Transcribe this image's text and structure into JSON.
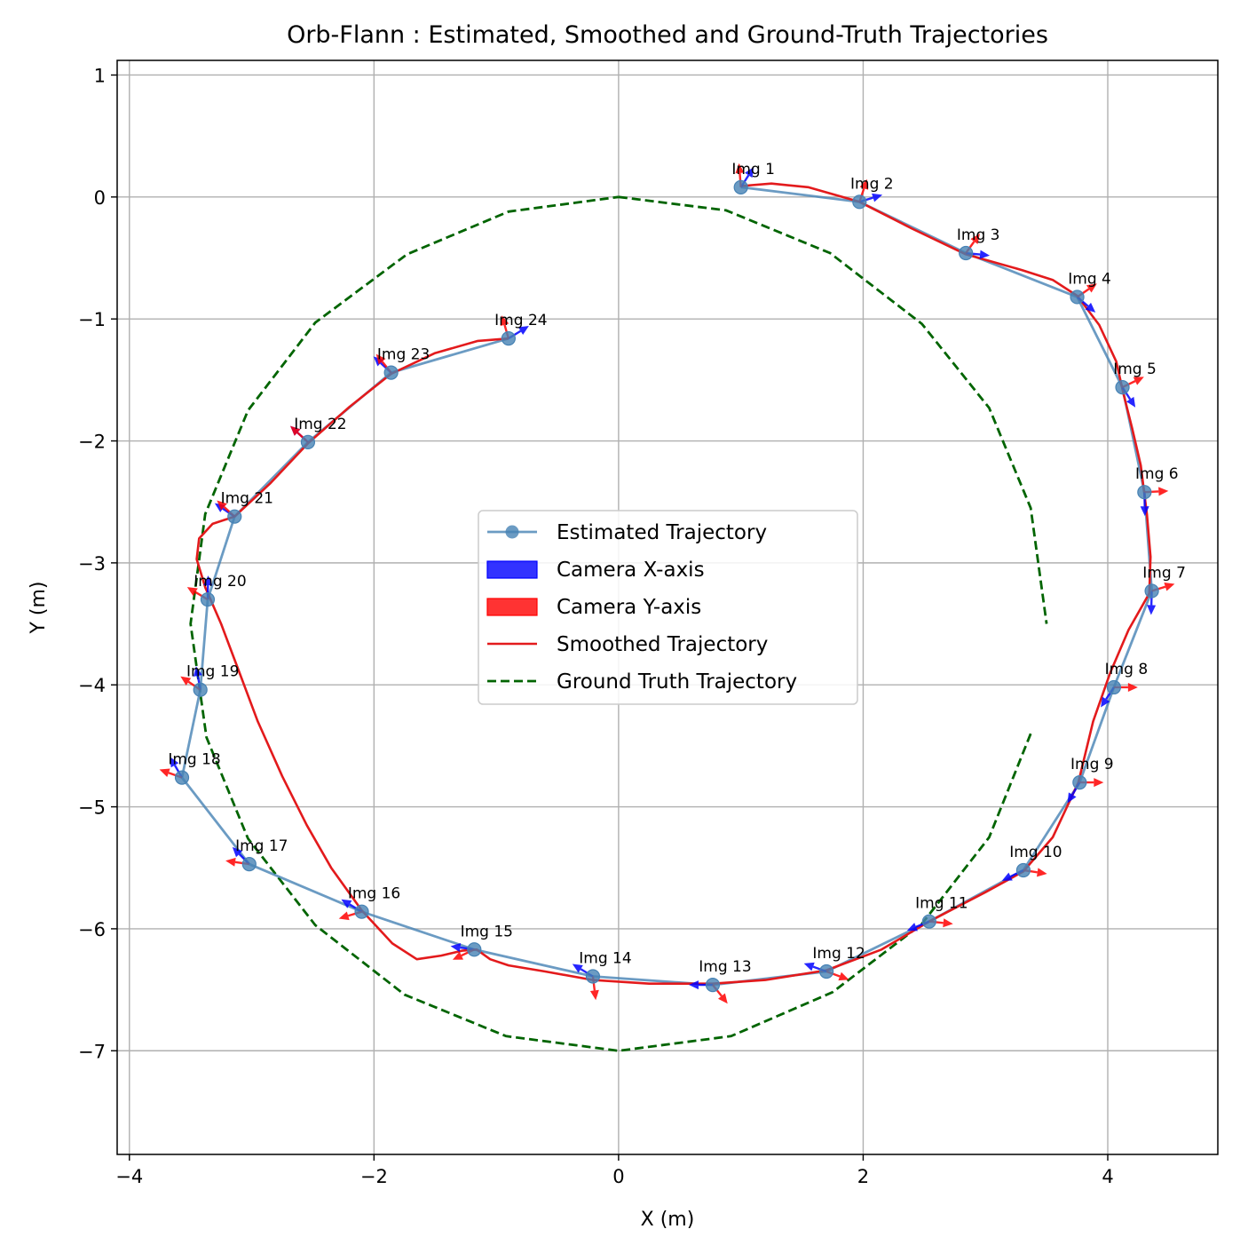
{
  "chart_data": {
    "type": "line",
    "title": "Orb-Flann : Estimated, Smoothed and Ground-Truth Trajectories",
    "xlabel": "X (m)",
    "ylabel": "Y (m)",
    "xlim": [
      -4.1,
      4.9
    ],
    "ylim": [
      -7.85,
      1.12
    ],
    "xticks": [
      -4,
      -2,
      0,
      2,
      4
    ],
    "xtick_labels": [
      "−4",
      "−2",
      "0",
      "2",
      "4"
    ],
    "yticks": [
      1,
      0,
      -1,
      -2,
      -3,
      -4,
      -5,
      -6,
      -7
    ],
    "ytick_labels": [
      "1",
      "0",
      "−1",
      "−2",
      "−3",
      "−4",
      "−5",
      "−6",
      "−7"
    ],
    "grid": true,
    "legend_position": "center",
    "legend": [
      {
        "label": "Estimated Trajectory",
        "kind": "line-marker",
        "color": "#4682b4"
      },
      {
        "label": "Camera X-axis",
        "kind": "patch",
        "color": "#0000ff"
      },
      {
        "label": "Camera Y-axis",
        "kind": "patch",
        "color": "#ff0000"
      },
      {
        "label": "Smoothed Trajectory",
        "kind": "line",
        "color": "#e31a1c"
      },
      {
        "label": "Ground Truth Trajectory",
        "kind": "dashed",
        "color": "#006400"
      }
    ],
    "estimated": [
      {
        "label": "Img 1",
        "x": 1.0,
        "y": 0.08,
        "xdir": 1.0,
        "ydir": 1.65
      },
      {
        "label": "Img 2",
        "x": 1.97,
        "y": -0.04,
        "xdir": 0.3,
        "ydir": 1.25
      },
      {
        "label": "Img 3",
        "x": 2.84,
        "y": -0.46,
        "xdir": -0.1,
        "ydir": 0.95
      },
      {
        "label": "Img 4",
        "x": 3.75,
        "y": -0.82,
        "xdir": -0.7,
        "ydir": 0.6
      },
      {
        "label": "Img 5",
        "x": 4.12,
        "y": -1.56,
        "xdir": -1.0,
        "ydir": 0.45
      },
      {
        "label": "Img 6",
        "x": 4.3,
        "y": -2.42,
        "xdir": -1.55,
        "ydir": 0.05
      },
      {
        "label": "Img 7",
        "x": 4.36,
        "y": -3.23,
        "xdir": -1.6,
        "ydir": 0.3
      },
      {
        "label": "Img 8",
        "x": 4.05,
        "y": -4.02,
        "xdir": -2.15,
        "ydir": 0.0
      },
      {
        "label": "Img 9",
        "x": 3.77,
        "y": -4.8,
        "xdir": -2.1,
        "ydir": 0.0
      },
      {
        "label": "Img 10",
        "x": 3.31,
        "y": -5.52,
        "xdir": 3.6,
        "ydir": -0.15
      },
      {
        "label": "Img 11",
        "x": 2.54,
        "y": -5.94,
        "xdir": -2.75,
        "ydir": -0.1
      },
      {
        "label": "Img 12",
        "x": 1.7,
        "y": -6.35,
        "xdir": 2.8,
        "ydir": -0.35
      },
      {
        "label": "Img 13",
        "x": 0.77,
        "y": -6.46,
        "xdir": 3.14,
        "ydir": -0.9
      },
      {
        "label": "Img 14",
        "x": -0.21,
        "y": -6.39,
        "xdir": 2.6,
        "ydir": -1.45
      },
      {
        "label": "Img 15",
        "x": -1.18,
        "y": -6.17,
        "xdir": 3.0,
        "ydir": -2.7
      },
      {
        "label": "Img 16",
        "x": -2.1,
        "y": -5.86,
        "xdir": 2.6,
        "ydir": -2.85
      },
      {
        "label": "Img 17",
        "x": -3.02,
        "y": -5.47,
        "xdir": 2.35,
        "ydir": 3.0
      },
      {
        "label": "Img 18",
        "x": -3.57,
        "y": -4.76,
        "xdir": 2.1,
        "ydir": 2.8
      },
      {
        "label": "Img 19",
        "x": -3.42,
        "y": -4.04,
        "xdir": 1.75,
        "ydir": 2.55
      },
      {
        "label": "Img 20",
        "x": -3.36,
        "y": -3.3,
        "xdir": 1.55,
        "ydir": 2.6
      },
      {
        "label": "Img 21",
        "x": -3.14,
        "y": -2.62,
        "xdir": 2.55,
        "ydir": 2.4
      },
      {
        "label": "Img 22",
        "x": -2.54,
        "y": -2.01,
        "xdir": 2.4,
        "ydir": 2.4
      },
      {
        "label": "Img 23",
        "x": -1.86,
        "y": -1.44,
        "xdir": 2.4,
        "ydir": 2.25
      },
      {
        "label": "Img 24",
        "x": -0.9,
        "y": -1.16,
        "xdir": 0.55,
        "ydir": 1.85
      }
    ],
    "smoothed": [
      [
        1.0,
        0.09
      ],
      [
        1.25,
        0.11
      ],
      [
        1.55,
        0.08
      ],
      [
        1.97,
        -0.04
      ],
      [
        2.4,
        -0.26
      ],
      [
        2.84,
        -0.47
      ],
      [
        3.3,
        -0.6
      ],
      [
        3.55,
        -0.68
      ],
      [
        3.75,
        -0.81
      ],
      [
        3.93,
        -1.05
      ],
      [
        4.07,
        -1.35
      ],
      [
        4.13,
        -1.62
      ],
      [
        4.2,
        -1.9
      ],
      [
        4.27,
        -2.2
      ],
      [
        4.32,
        -2.6
      ],
      [
        4.35,
        -2.95
      ],
      [
        4.34,
        -3.25
      ],
      [
        4.17,
        -3.55
      ],
      [
        4.02,
        -3.9
      ],
      [
        3.88,
        -4.3
      ],
      [
        3.76,
        -4.8
      ],
      [
        3.55,
        -5.25
      ],
      [
        3.31,
        -5.53
      ],
      [
        3.0,
        -5.7
      ],
      [
        2.54,
        -5.94
      ],
      [
        2.15,
        -6.17
      ],
      [
        1.7,
        -6.34
      ],
      [
        1.2,
        -6.42
      ],
      [
        0.77,
        -6.45
      ],
      [
        0.25,
        -6.45
      ],
      [
        -0.21,
        -6.42
      ],
      [
        -0.6,
        -6.35
      ],
      [
        -0.9,
        -6.3
      ],
      [
        -1.05,
        -6.25
      ],
      [
        -1.16,
        -6.17
      ],
      [
        -1.28,
        -6.18
      ],
      [
        -1.45,
        -6.22
      ],
      [
        -1.65,
        -6.25
      ],
      [
        -1.85,
        -6.12
      ],
      [
        -2.1,
        -5.85
      ],
      [
        -2.35,
        -5.5
      ],
      [
        -2.55,
        -5.15
      ],
      [
        -2.75,
        -4.75
      ],
      [
        -2.95,
        -4.3
      ],
      [
        -3.1,
        -3.9
      ],
      [
        -3.25,
        -3.5
      ],
      [
        -3.38,
        -3.2
      ],
      [
        -3.45,
        -2.97
      ],
      [
        -3.43,
        -2.8
      ],
      [
        -3.32,
        -2.68
      ],
      [
        -3.14,
        -2.62
      ],
      [
        -2.85,
        -2.35
      ],
      [
        -2.54,
        -2.02
      ],
      [
        -2.2,
        -1.72
      ],
      [
        -1.86,
        -1.45
      ],
      [
        -1.5,
        -1.28
      ],
      [
        -1.15,
        -1.18
      ],
      [
        -0.9,
        -1.16
      ]
    ],
    "ground_truth": [
      [
        0.0,
        0.0
      ],
      [
        0.88,
        -0.11
      ],
      [
        1.73,
        -0.46
      ],
      [
        2.48,
        -1.04
      ],
      [
        3.03,
        -1.73
      ],
      [
        3.37,
        -2.55
      ],
      [
        3.5,
        -3.5
      ],
      [
        3.37,
        -4.4
      ],
      [
        3.03,
        -5.25
      ],
      [
        2.48,
        -5.96
      ],
      [
        1.75,
        -6.52
      ],
      [
        0.92,
        -6.88
      ],
      [
        0.0,
        -7.0
      ],
      [
        -0.92,
        -6.88
      ],
      [
        -1.75,
        -6.54
      ],
      [
        -2.48,
        -5.97
      ],
      [
        -3.03,
        -5.26
      ],
      [
        -3.37,
        -4.43
      ],
      [
        -3.5,
        -3.5
      ],
      [
        -3.38,
        -2.6
      ],
      [
        -3.03,
        -1.75
      ],
      [
        -2.48,
        -1.03
      ],
      [
        -1.73,
        -0.47
      ],
      [
        -0.9,
        -0.12
      ],
      [
        0.0,
        0.0
      ]
    ]
  }
}
